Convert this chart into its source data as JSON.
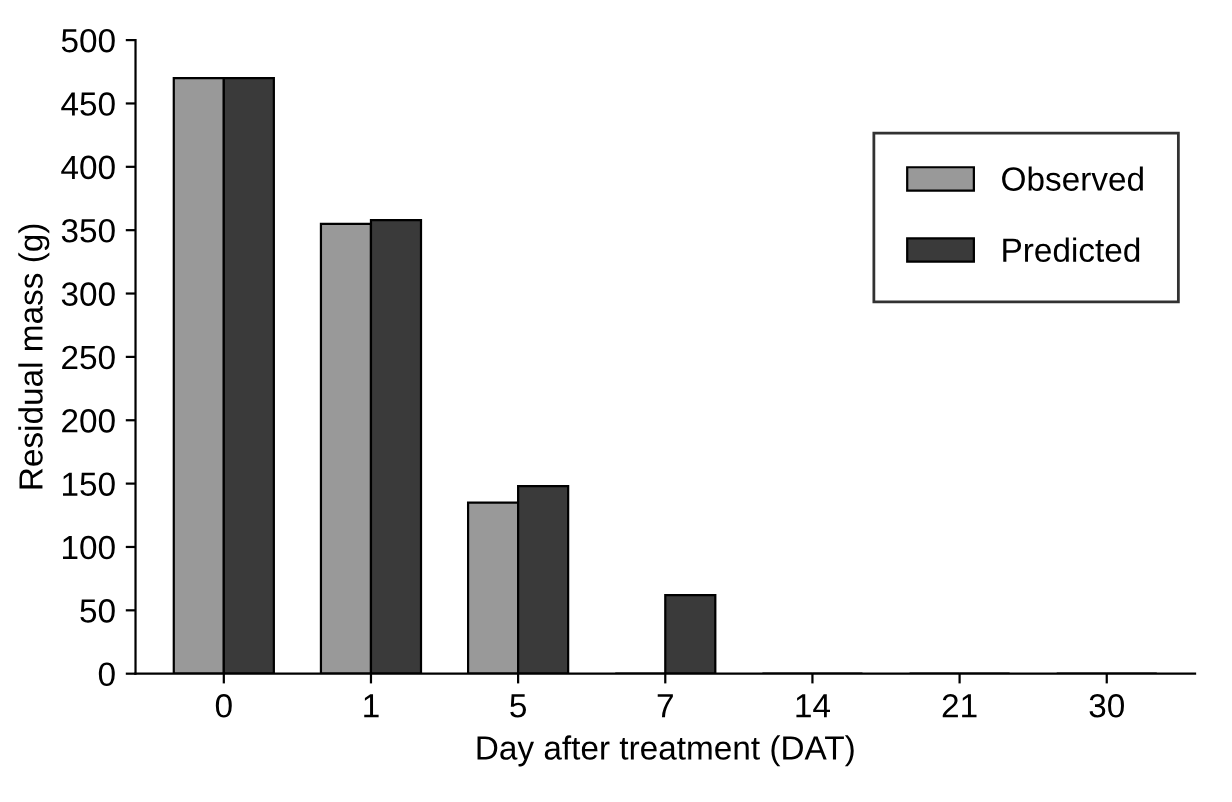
{
  "chart_data": {
    "type": "bar",
    "xlabel": "Day after treatment (DAT)",
    "ylabel": "Residual mass (g)",
    "categories": [
      "0",
      "1",
      "5",
      "7",
      "14",
      "21",
      "30"
    ],
    "series": [
      {
        "name": "Observed",
        "color": "#999999",
        "values": [
          470,
          355,
          135,
          0,
          0,
          0,
          0
        ]
      },
      {
        "name": "Predicted",
        "color": "#3a3a3a",
        "values": [
          470,
          358,
          148,
          62,
          0,
          0,
          0
        ]
      }
    ],
    "ylim": [
      0,
      500
    ],
    "yticks": [
      0,
      50,
      100,
      150,
      200,
      250,
      300,
      350,
      400,
      450,
      500
    ],
    "grid": false,
    "legend": "right"
  }
}
